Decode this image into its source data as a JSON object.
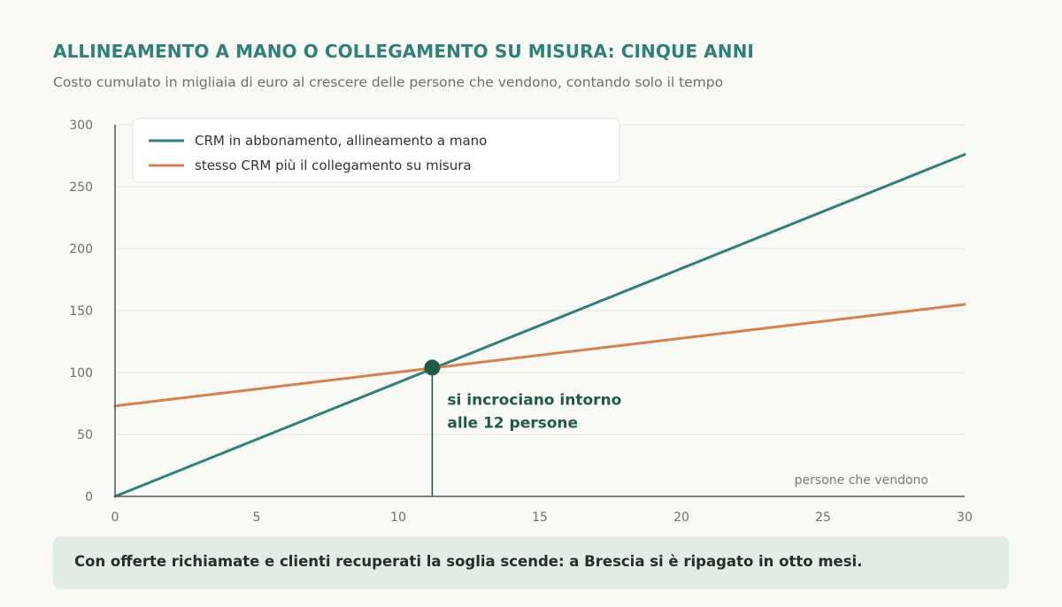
{
  "header": {
    "title": "ALLINEAMENTO A MANO O COLLEGAMENTO SU MISURA: CINQUE ANNI",
    "subtitle": "Costo cumulato in migliaia di euro al crescere delle persone che vendono, contando solo il tempo"
  },
  "chart_data": {
    "type": "line",
    "xlabel": "persone che vendono",
    "ylabel": "",
    "xlim": [
      0,
      30
    ],
    "ylim": [
      0,
      300
    ],
    "x_ticks": [
      0,
      5,
      10,
      15,
      20,
      25,
      30
    ],
    "y_ticks": [
      0,
      50,
      100,
      150,
      200,
      250,
      300
    ],
    "grid": "horizontal",
    "legend_position": "top-left",
    "series": [
      {
        "name": "CRM in abbonamento, allineamento a mano",
        "color": "#2e8079",
        "x": [
          0,
          30
        ],
        "y": [
          0,
          276
        ]
      },
      {
        "name": "stesso CRM più il collegamento su misura",
        "color": "#d4814c",
        "x": [
          0,
          30
        ],
        "y": [
          73,
          155
        ]
      }
    ],
    "annotation": {
      "x": 11.2,
      "y": 104,
      "color": "#1e5c48",
      "lines": [
        "si incrociano intorno",
        "alle 12 persone"
      ]
    }
  },
  "footer": {
    "text": "Con offerte richiamate e clienti recuperati la soglia scende: a Brescia si è ripagato in otto mesi."
  }
}
